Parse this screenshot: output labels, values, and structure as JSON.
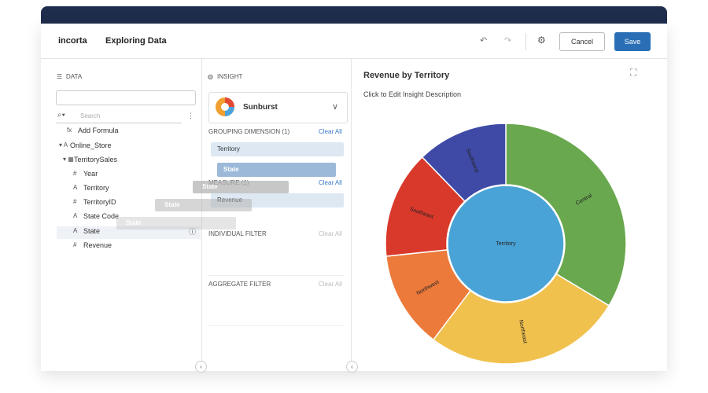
{
  "header": {
    "logo": "incorta",
    "title": "Exploring Data",
    "cancel": "Cancel",
    "save": "Save"
  },
  "data_panel": {
    "title": "DATA",
    "search": "Search",
    "items": [
      {
        "icon": "fx",
        "label": "Add Formula"
      },
      {
        "icon": "▾ A",
        "label": "Online_Store"
      },
      {
        "icon": "▾ ▦",
        "label": "TerritorySales"
      },
      {
        "icon": "#",
        "label": "Year"
      },
      {
        "icon": "A",
        "label": "Territory"
      },
      {
        "icon": "#",
        "label": "TerritoryID"
      },
      {
        "icon": "A",
        "label": "State Code"
      },
      {
        "icon": "A",
        "label": "State"
      },
      {
        "icon": "#",
        "label": "Revenue"
      }
    ]
  },
  "insight_panel": {
    "title": "INSIGHT",
    "viz": "Sunburst",
    "sections": [
      {
        "title": "GROUPING DIMENSION (1)",
        "action": "Clear All",
        "pills": [
          "Territory",
          "State"
        ]
      },
      {
        "title": "MEASURE (1)",
        "action": "Clear All",
        "pills": [
          "Revenue"
        ]
      },
      {
        "title": "INDIVIDUAL FILTER",
        "action": "Clear All"
      },
      {
        "title": "AGGREGATE FILTER",
        "action": "Clear All"
      }
    ],
    "drag_ghosts": [
      "State",
      "State",
      "State"
    ]
  },
  "chart": {
    "title": "Revenue by Territory",
    "description": "Click to Edit Insight Description",
    "center": "Territory",
    "segments": [
      "Central",
      "Northeast",
      "Northwest",
      "Southeast",
      "Southwest"
    ]
  }
}
